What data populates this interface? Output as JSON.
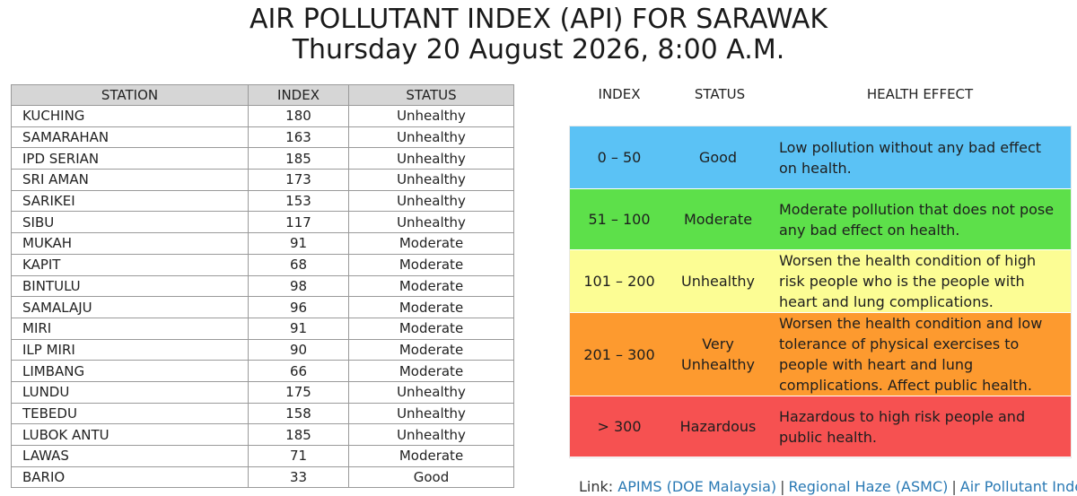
{
  "header": {
    "title": "AIR POLLUTANT INDEX (API) FOR SARAWAK",
    "datetime": "Thursday 20 August 2026, 8:00 A.M."
  },
  "station_table": {
    "headers": [
      "STATION",
      "INDEX",
      "STATUS"
    ],
    "rows": [
      {
        "station": "KUCHING",
        "index": "180",
        "status": "Unhealthy"
      },
      {
        "station": "SAMARAHAN",
        "index": "163",
        "status": "Unhealthy"
      },
      {
        "station": "IPD SERIAN",
        "index": "185",
        "status": "Unhealthy"
      },
      {
        "station": "SRI AMAN",
        "index": "173",
        "status": "Unhealthy"
      },
      {
        "station": "SARIKEI",
        "index": "153",
        "status": "Unhealthy"
      },
      {
        "station": "SIBU",
        "index": "117",
        "status": "Unhealthy"
      },
      {
        "station": "MUKAH",
        "index": "91",
        "status": "Moderate"
      },
      {
        "station": "KAPIT",
        "index": "68",
        "status": "Moderate"
      },
      {
        "station": "BINTULU",
        "index": "98",
        "status": "Moderate"
      },
      {
        "station": "SAMALAJU",
        "index": "96",
        "status": "Moderate"
      },
      {
        "station": "MIRI",
        "index": "91",
        "status": "Moderate"
      },
      {
        "station": "ILP MIRI",
        "index": "90",
        "status": "Moderate"
      },
      {
        "station": "LIMBANG",
        "index": "66",
        "status": "Moderate"
      },
      {
        "station": "LUNDU",
        "index": "175",
        "status": "Unhealthy"
      },
      {
        "station": "TEBEDU",
        "index": "158",
        "status": "Unhealthy"
      },
      {
        "station": "LUBOK ANTU",
        "index": "185",
        "status": "Unhealthy"
      },
      {
        "station": "LAWAS",
        "index": "71",
        "status": "Moderate"
      },
      {
        "station": "BARIO",
        "index": "33",
        "status": "Good"
      }
    ]
  },
  "legend": {
    "headers": {
      "index": "INDEX",
      "status": "STATUS",
      "effect": "HEALTH EFFECT"
    },
    "bands": [
      {
        "range": "0 – 50",
        "status": "Good",
        "effect": "Low pollution without any bad effect on health.",
        "color": "#5bc2f5"
      },
      {
        "range": "51 – 100",
        "status": "Moderate",
        "effect": "Moderate pollution that does not pose any bad effect on health.",
        "color": "#5de04a"
      },
      {
        "range": "101 – 200",
        "status": "Unhealthy",
        "effect": "Worsen the health condition of high risk people who is the people with heart and lung complications.",
        "color": "#fcfd94"
      },
      {
        "range": "201 – 300",
        "status": "Very Unhealthy",
        "effect": "Worsen the health condition and low tolerance of physical exercises to people with heart and lung complications. Affect public health.",
        "color": "#fd9a2f"
      },
      {
        "range": "> 300",
        "status": "Hazardous",
        "effect": "Hazardous to high risk people and public health.",
        "color": "#f65151"
      }
    ]
  },
  "links": {
    "label": "Link:",
    "items": [
      "APIMS (DOE Malaysia)",
      "Regional Haze (ASMC)",
      "Air Pollutant Index"
    ],
    "separator": "|"
  }
}
